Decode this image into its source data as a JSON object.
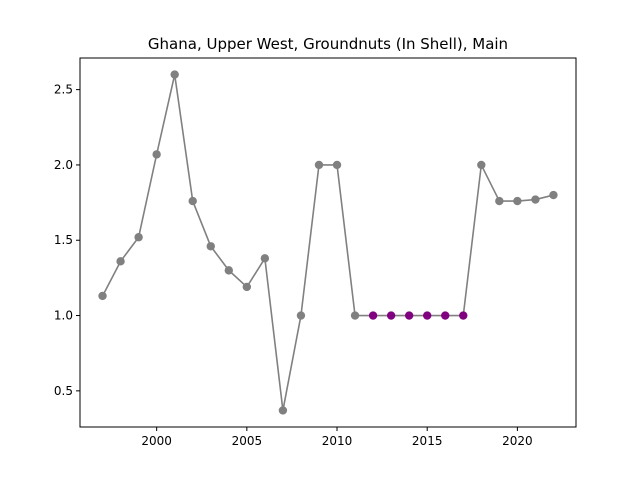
{
  "chart_data": {
    "type": "line",
    "title": "Ghana, Upper West, Groundnuts (In Shell), Main",
    "xlabel": "",
    "ylabel": "",
    "xlim": [
      1995.75,
      2023.25
    ],
    "ylim": [
      0.26,
      2.71
    ],
    "grid": false,
    "x_ticks": [
      2000,
      2005,
      2010,
      2015,
      2020
    ],
    "y_ticks": [
      0.5,
      1.0,
      1.5,
      2.0,
      2.5
    ],
    "x_tick_labels": [
      "2000",
      "2005",
      "2010",
      "2015",
      "2020"
    ],
    "y_tick_labels": [
      "0.5",
      "1.0",
      "1.5",
      "2.0",
      "2.5"
    ],
    "colors": {
      "line": "#808080",
      "normal": "#808080",
      "highlight": "#800080"
    },
    "series": [
      {
        "x": [
          1997,
          1998,
          1999,
          2000,
          2001,
          2002,
          2003,
          2004,
          2005,
          2006,
          2007,
          2008,
          2009,
          2010,
          2011,
          2012,
          2013,
          2014,
          2015,
          2016,
          2017,
          2018,
          2019,
          2020,
          2021,
          2022
        ],
        "values": [
          1.13,
          1.36,
          1.52,
          2.07,
          2.6,
          1.76,
          1.46,
          1.3,
          1.19,
          1.38,
          0.37,
          1.0,
          2.0,
          2.0,
          1.0,
          1.0,
          1.0,
          1.0,
          1.0,
          1.0,
          1.0,
          2.0,
          1.76,
          1.76,
          1.77,
          1.8
        ],
        "highlighted": [
          false,
          false,
          false,
          false,
          false,
          false,
          false,
          false,
          false,
          false,
          false,
          false,
          false,
          false,
          false,
          true,
          true,
          true,
          true,
          true,
          true,
          false,
          false,
          false,
          false,
          false
        ]
      }
    ]
  }
}
